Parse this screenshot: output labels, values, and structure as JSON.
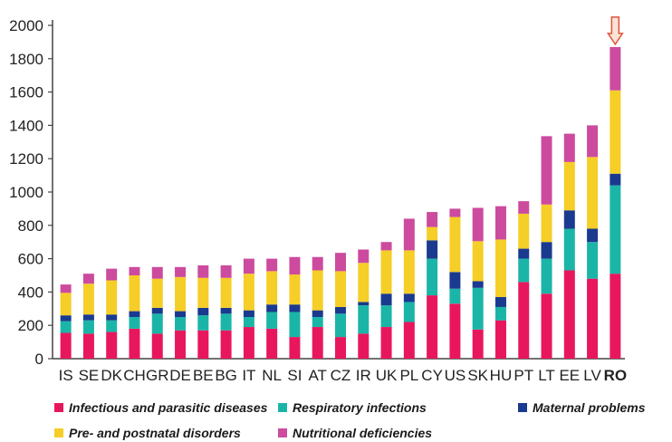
{
  "chart_data": {
    "type": "bar",
    "stacked": true,
    "categories": [
      "IS",
      "SE",
      "DK",
      "CH",
      "GR",
      "DE",
      "BE",
      "BG",
      "IT",
      "NL",
      "SI",
      "AT",
      "CZ",
      "IR",
      "UK",
      "PL",
      "CY",
      "US",
      "SK",
      "HU",
      "PT",
      "LT",
      "EE",
      "LV",
      "RO"
    ],
    "highlight_category": "RO",
    "ylim": [
      0,
      2000
    ],
    "yticks": [
      0,
      200,
      400,
      600,
      800,
      1000,
      1200,
      1400,
      1600,
      1800,
      2000
    ],
    "grid": false,
    "legend_position": "bottom",
    "series": [
      {
        "name": "Infectious and parasitic diseases",
        "color": "#e8175d",
        "values": [
          155,
          150,
          160,
          180,
          150,
          170,
          170,
          170,
          190,
          180,
          130,
          190,
          130,
          150,
          190,
          220,
          380,
          330,
          175,
          230,
          460,
          390,
          530,
          480,
          510
        ]
      },
      {
        "name": "Respiratory infections",
        "color": "#1bb5a8",
        "values": [
          70,
          80,
          70,
          70,
          120,
          80,
          90,
          100,
          60,
          100,
          150,
          60,
          140,
          170,
          130,
          120,
          220,
          90,
          250,
          80,
          140,
          210,
          250,
          220,
          530
        ]
      },
      {
        "name": "Maternal problems",
        "color": "#1a3a8f",
        "values": [
          35,
          35,
          35,
          35,
          35,
          35,
          45,
          35,
          40,
          45,
          45,
          40,
          40,
          20,
          70,
          50,
          110,
          100,
          40,
          60,
          60,
          100,
          110,
          80,
          70
        ]
      },
      {
        "name": "Pre- and postnatal disorders",
        "color": "#f5ce27",
        "values": [
          135,
          185,
          205,
          215,
          175,
          205,
          180,
          180,
          220,
          200,
          180,
          240,
          215,
          235,
          260,
          260,
          80,
          330,
          240,
          345,
          210,
          225,
          290,
          430,
          500
        ]
      },
      {
        "name": "Nutritional deficiencies",
        "color": "#cc4b9e",
        "values": [
          50,
          60,
          70,
          50,
          70,
          60,
          75,
          75,
          90,
          75,
          105,
          80,
          110,
          80,
          50,
          190,
          90,
          50,
          200,
          200,
          75,
          410,
          170,
          190,
          260
        ]
      }
    ],
    "title": "",
    "xlabel": "",
    "ylabel": ""
  },
  "legend": {
    "items": [
      {
        "label": "Infectious and parasitic diseases",
        "color": "#e8175d"
      },
      {
        "label": "Respiratory infections",
        "color": "#1bb5a8"
      },
      {
        "label": "Maternal problems",
        "color": "#1a3a8f"
      },
      {
        "label": "Pre- and postnatal disorders",
        "color": "#f5ce27"
      },
      {
        "label": "Nutritional deficiencies",
        "color": "#cc4b9e"
      }
    ]
  },
  "icons": {
    "highlight_marker": "down-arrow-icon"
  },
  "colors": {
    "axis": "#444444",
    "arrow_fill": "#fbe3d6",
    "arrow_stroke": "#e0533a"
  }
}
